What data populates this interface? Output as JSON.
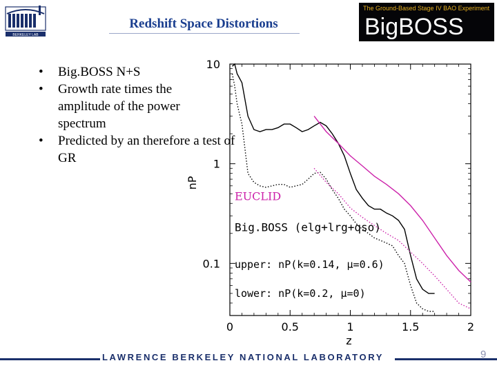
{
  "slide": {
    "title": "Redshift Space Distortions",
    "banner_tagline": "The Ground-Based Stage IV BAO Experiment",
    "banner_name": "BigBOSS",
    "logo_text": "BERKELEY LAB",
    "bullets": [
      "Big.BOSS N+S",
      "Growth rate times the amplitude of the power spectrum",
      "Predicted by an therefore a test of GR"
    ],
    "footer": "LAWRENCE BERKELEY NATIONAL LABORATORY",
    "page_number": "9"
  },
  "chart_data": {
    "type": "line",
    "xlabel": "z",
    "ylabel": "nP",
    "xlim": [
      0,
      2
    ],
    "ylim": [
      0.03,
      10
    ],
    "yscale": "log",
    "x_ticks": [
      "0",
      "0.5",
      "1",
      "1.5",
      "2"
    ],
    "y_ticks": [
      "0.1",
      "1",
      "10"
    ],
    "legend": {
      "euclid": "EUCLID",
      "bigboss": "Big.BOSS (elg+lrg+qso)",
      "upper": "upper: nP(k=0.14, μ=0.6)",
      "lower": "lower: nP(k=0.2, μ=0)"
    },
    "colors": {
      "bigboss": "#000000",
      "euclid": "#cc22aa"
    },
    "series": [
      {
        "name": "Big.BOSS (elg+lrg+qso)",
        "style": "solid",
        "color": "#000000",
        "points": [
          [
            0.02,
            9.5
          ],
          [
            0.04,
            10
          ],
          [
            0.06,
            8
          ],
          [
            0.1,
            6.5
          ],
          [
            0.15,
            3
          ],
          [
            0.2,
            2.2
          ],
          [
            0.25,
            2.1
          ],
          [
            0.3,
            2.2
          ],
          [
            0.35,
            2.2
          ],
          [
            0.4,
            2.3
          ],
          [
            0.45,
            2.5
          ],
          [
            0.5,
            2.5
          ],
          [
            0.55,
            2.3
          ],
          [
            0.6,
            2.1
          ],
          [
            0.65,
            2.2
          ],
          [
            0.7,
            2.4
          ],
          [
            0.75,
            2.6
          ],
          [
            0.8,
            2.4
          ],
          [
            0.85,
            2.0
          ],
          [
            0.9,
            1.6
          ],
          [
            0.95,
            1.2
          ],
          [
            1.0,
            0.8
          ],
          [
            1.05,
            0.55
          ],
          [
            1.1,
            0.45
          ],
          [
            1.15,
            0.38
          ],
          [
            1.2,
            0.35
          ],
          [
            1.25,
            0.35
          ],
          [
            1.3,
            0.32
          ],
          [
            1.35,
            0.3
          ],
          [
            1.4,
            0.27
          ],
          [
            1.45,
            0.22
          ],
          [
            1.5,
            0.12
          ],
          [
            1.55,
            0.07
          ],
          [
            1.6,
            0.055
          ],
          [
            1.65,
            0.05
          ],
          [
            1.7,
            0.05
          ]
        ]
      },
      {
        "name": "Big.BOSS (elg+lrg+qso)",
        "style": "dotted",
        "color": "#000000",
        "points": [
          [
            0.02,
            8
          ],
          [
            0.04,
            6
          ],
          [
            0.06,
            4
          ],
          [
            0.1,
            2.5
          ],
          [
            0.15,
            0.8
          ],
          [
            0.2,
            0.65
          ],
          [
            0.25,
            0.6
          ],
          [
            0.3,
            0.58
          ],
          [
            0.35,
            0.6
          ],
          [
            0.4,
            0.62
          ],
          [
            0.45,
            0.62
          ],
          [
            0.5,
            0.58
          ],
          [
            0.55,
            0.6
          ],
          [
            0.6,
            0.62
          ],
          [
            0.65,
            0.7
          ],
          [
            0.7,
            0.8
          ],
          [
            0.75,
            0.82
          ],
          [
            0.8,
            0.7
          ],
          [
            0.85,
            0.55
          ],
          [
            0.9,
            0.45
          ],
          [
            0.95,
            0.35
          ],
          [
            1.0,
            0.3
          ],
          [
            1.05,
            0.25
          ],
          [
            1.1,
            0.22
          ],
          [
            1.15,
            0.2
          ],
          [
            1.2,
            0.18
          ],
          [
            1.25,
            0.17
          ],
          [
            1.3,
            0.16
          ],
          [
            1.35,
            0.15
          ],
          [
            1.4,
            0.12
          ],
          [
            1.45,
            0.1
          ],
          [
            1.5,
            0.06
          ],
          [
            1.55,
            0.04
          ],
          [
            1.6,
            0.035
          ],
          [
            1.65,
            0.033
          ],
          [
            1.7,
            0.033
          ]
        ]
      },
      {
        "name": "EUCLID",
        "style": "solid",
        "color": "#cc22aa",
        "points": [
          [
            0.7,
            3.0
          ],
          [
            0.8,
            2.1
          ],
          [
            0.9,
            1.6
          ],
          [
            1.0,
            1.2
          ],
          [
            1.1,
            0.95
          ],
          [
            1.2,
            0.75
          ],
          [
            1.3,
            0.62
          ],
          [
            1.4,
            0.5
          ],
          [
            1.5,
            0.38
          ],
          [
            1.6,
            0.27
          ],
          [
            1.7,
            0.18
          ],
          [
            1.8,
            0.12
          ],
          [
            1.9,
            0.085
          ],
          [
            2.0,
            0.065
          ]
        ]
      },
      {
        "name": "EUCLID",
        "style": "dotted",
        "color": "#cc22aa",
        "points": [
          [
            0.7,
            0.9
          ],
          [
            0.8,
            0.65
          ],
          [
            0.9,
            0.5
          ],
          [
            1.0,
            0.36
          ],
          [
            1.1,
            0.29
          ],
          [
            1.2,
            0.24
          ],
          [
            1.3,
            0.2
          ],
          [
            1.4,
            0.17
          ],
          [
            1.5,
            0.13
          ],
          [
            1.6,
            0.1
          ],
          [
            1.7,
            0.075
          ],
          [
            1.8,
            0.055
          ],
          [
            1.9,
            0.04
          ],
          [
            2.0,
            0.035
          ]
        ]
      }
    ]
  }
}
